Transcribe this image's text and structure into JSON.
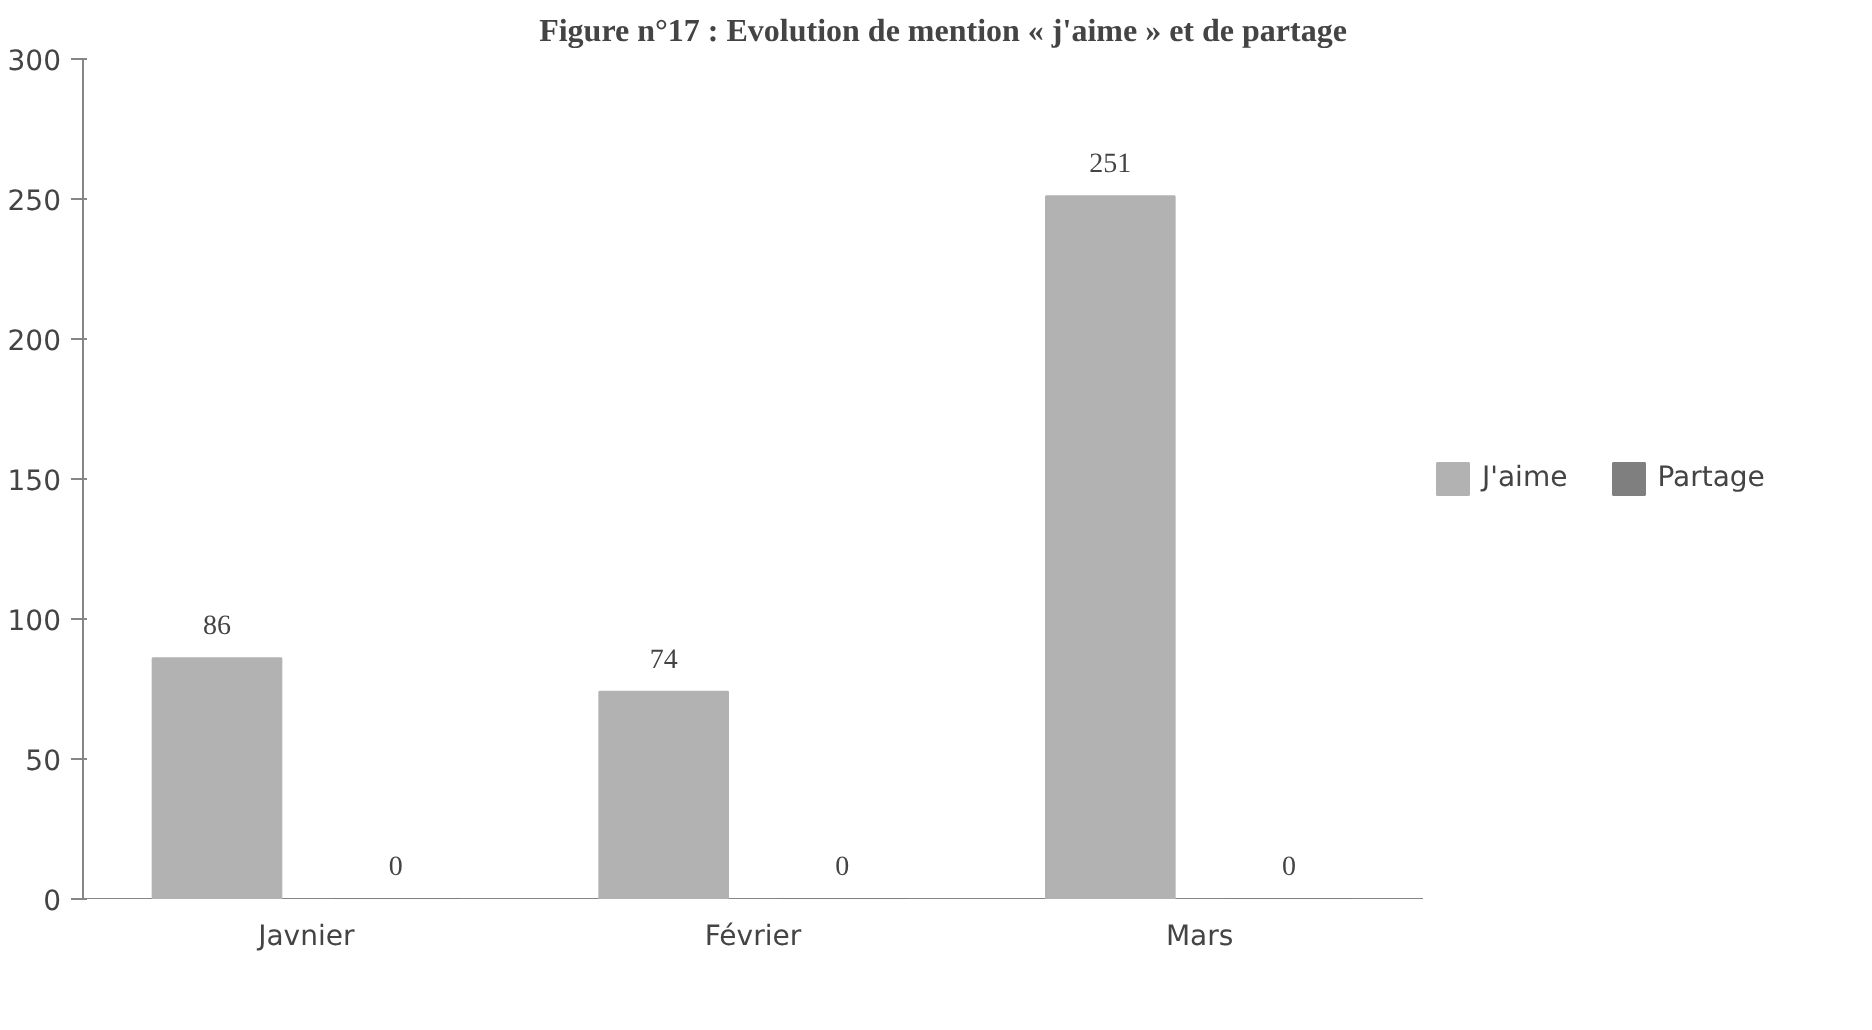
{
  "chart_data": {
    "type": "bar",
    "title": "Figure n°17 : Evolution de mention « j'aime » et de partage",
    "categories": [
      "Javnier",
      "Février",
      "Mars"
    ],
    "series": [
      {
        "name": "J'aime",
        "color": "#b2b2b2",
        "values": [
          86,
          74,
          251
        ]
      },
      {
        "name": "Partage",
        "color": "#7f7f7f",
        "values": [
          0,
          0,
          0
        ]
      }
    ],
    "ylim": [
      0,
      300
    ],
    "yticks": [
      0,
      50,
      100,
      150,
      200,
      250,
      300
    ],
    "grid": false,
    "legend": "right",
    "data_labels": true
  }
}
